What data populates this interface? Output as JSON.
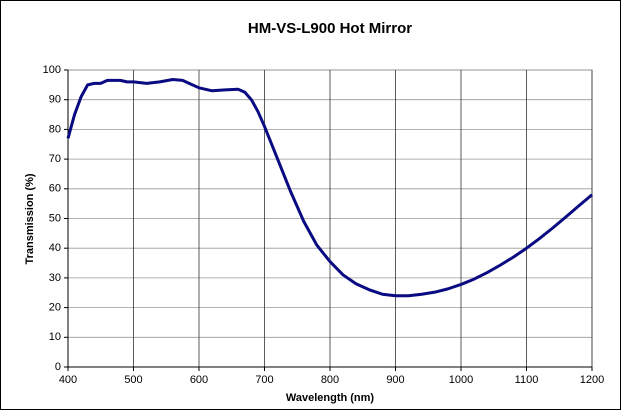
{
  "chart_data": {
    "type": "line",
    "title": "HM-VS-L900 Hot Mirror",
    "xlabel": "Wavelength (nm)",
    "ylabel": "Transmission (%)",
    "x": [
      400,
      410,
      420,
      430,
      440,
      450,
      460,
      470,
      480,
      490,
      500,
      520,
      540,
      560,
      575,
      590,
      600,
      620,
      640,
      660,
      670,
      680,
      690,
      700,
      720,
      740,
      760,
      780,
      800,
      820,
      840,
      860,
      880,
      900,
      920,
      940,
      960,
      980,
      1000,
      1020,
      1040,
      1060,
      1080,
      1100,
      1120,
      1140,
      1160,
      1180,
      1200
    ],
    "series": [
      {
        "name": "Transmission",
        "color": "#0a0a82",
        "values": [
          77,
          85,
          91,
          95,
          95.5,
          95.5,
          96.5,
          96.5,
          96.5,
          96,
          96,
          95.5,
          96,
          96.8,
          96.5,
          95,
          94,
          93,
          93.3,
          93.5,
          92.5,
          90,
          86,
          81,
          70,
          59,
          49,
          41,
          35.5,
          31,
          28,
          26,
          24.5,
          24,
          24,
          24.5,
          25.2,
          26.3,
          27.8,
          29.6,
          31.8,
          34.3,
          37,
          40,
          43.3,
          46.8,
          50.5,
          54.3,
          58
        ]
      }
    ],
    "xlim": [
      400,
      1200
    ],
    "xticks": [
      400,
      500,
      600,
      700,
      800,
      900,
      1000,
      1100,
      1200
    ],
    "ylim": [
      0,
      100
    ],
    "yticks": [
      0,
      10,
      20,
      30,
      40,
      50,
      60,
      70,
      80,
      90,
      100
    ],
    "grid": true
  }
}
